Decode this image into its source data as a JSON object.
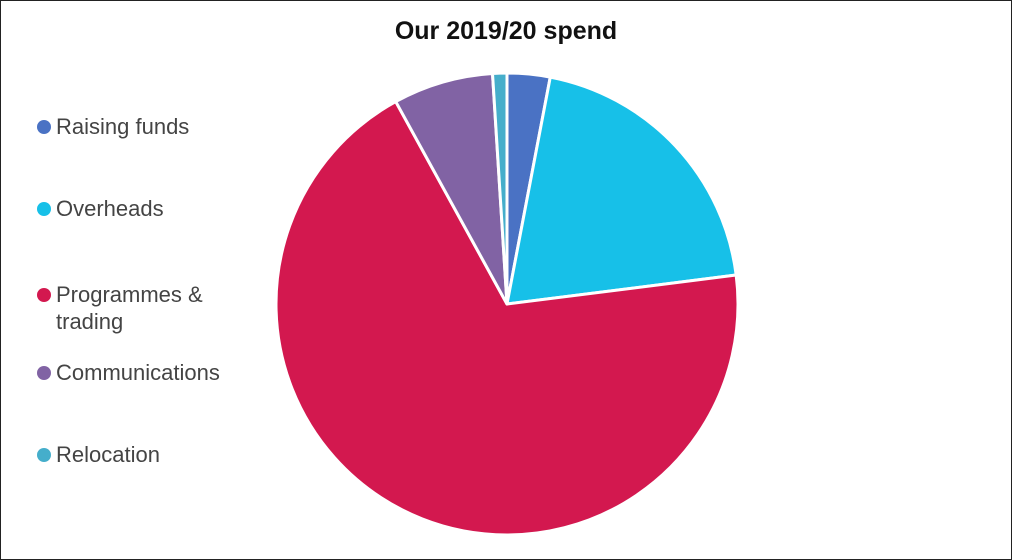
{
  "chart_data": {
    "type": "pie",
    "title": "Our 2019/20 spend",
    "categories": [
      "Raising funds",
      "Overheads",
      "Programmes & trading",
      "Communications",
      "Relocation"
    ],
    "values": [
      3,
      20,
      69,
      7,
      1
    ],
    "colors": [
      "#4a72c4",
      "#17c0e8",
      "#d3184f",
      "#8163a4",
      "#45aecb"
    ]
  }
}
